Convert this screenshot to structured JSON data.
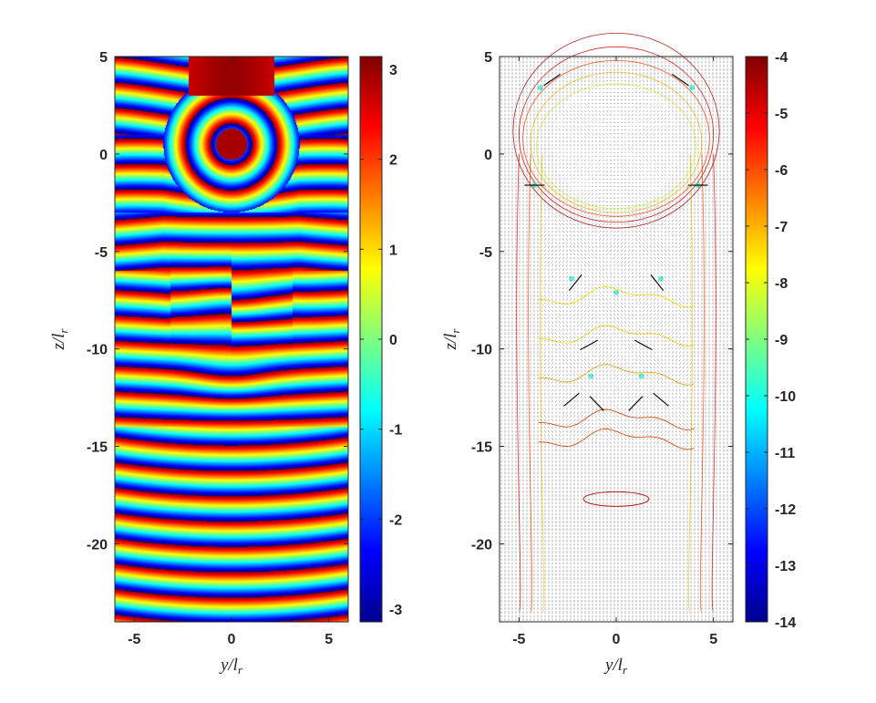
{
  "chart_data": [
    {
      "type": "heatmap",
      "title": "",
      "xlabel": "y/l_r",
      "ylabel": "z/l_r",
      "xlim": [
        -6,
        6
      ],
      "ylim": [
        -24,
        5
      ],
      "x_ticks": [
        -5,
        0,
        5
      ],
      "y_ticks": [
        5,
        0,
        -5,
        -10,
        -15,
        -20
      ],
      "colorbar": {
        "min": -3.1416,
        "max": 3.1416,
        "ticks": [
          3,
          2,
          1,
          0,
          -1,
          -2,
          -3
        ],
        "colormap": "jet"
      },
      "features": {
        "ring_center": [
          0,
          0.5
        ],
        "ring_radius": 3.5,
        "central_peak_value": 3,
        "wave_band_period": 1.3,
        "grid_on": false
      }
    },
    {
      "type": "heatmap",
      "title": "",
      "xlabel": "y/l_r",
      "ylabel": "z/l_r",
      "xlim": [
        -6,
        6
      ],
      "ylim": [
        -24,
        5
      ],
      "x_ticks": [
        -5,
        0,
        5
      ],
      "y_ticks": [
        5,
        0,
        -5,
        -10,
        -15,
        -20
      ],
      "colorbar": {
        "min": -14,
        "max": -4,
        "ticks": [
          -4,
          -5,
          -6,
          -7,
          -8,
          -9,
          -10,
          -11,
          -12,
          -13,
          -14
        ],
        "colormap": "jet"
      },
      "overlay": "quiver vector field with log-magnitude contour lines",
      "features": {
        "contour_levels": [
          -4,
          -5,
          -6,
          -7,
          -8,
          -9
        ],
        "grid_on": false
      }
    }
  ],
  "colors": {
    "jet_dark_blue": "#00008f",
    "jet_blue": "#0000ff",
    "jet_cyan": "#00ffff",
    "jet_yellow": "#ffff00",
    "jet_red": "#ff0000",
    "jet_dark_red": "#800000",
    "axis": "#262626",
    "arrow": "#000000"
  }
}
